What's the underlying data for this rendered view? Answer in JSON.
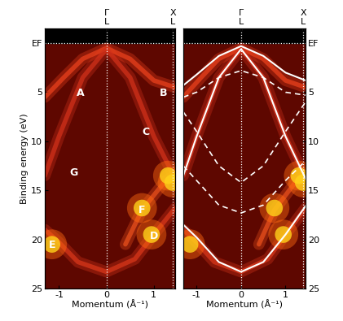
{
  "chart_data": [
    {
      "type": "line",
      "xlabel": "Momentum (Å⁻¹)",
      "ylabel": "Binding energy (eV)",
      "xlim": [
        -1.3,
        1.45
      ],
      "ylim": [
        25,
        -1.5
      ],
      "xticks": [
        {
          "value": -1,
          "label": "-1"
        },
        0,
        1
      ],
      "yticks": [
        {
          "value": 0,
          "label": "EF"
        },
        5,
        10,
        15,
        20,
        25
      ],
      "x2ticks": [
        {
          "value": 0,
          "label": "Γ\nL"
        },
        {
          "value": 1.4,
          "label": "X\nL"
        }
      ],
      "series": [
        {
          "type": "line",
          "line_style": "glow",
          "color": "#e8401c",
          "x": [
            -1.3,
            -0.9,
            -0.5,
            0,
            0.5,
            1,
            1.45
          ],
          "y": [
            5.5,
            3.5,
            1.6,
            0.5,
            1.6,
            3.8,
            4.5
          ]
        },
        {
          "type": "line",
          "line_style": "glow",
          "color": "#d0301a",
          "x": [
            -1.3,
            -1,
            -0.5,
            0,
            0.5,
            1,
            1.45
          ],
          "y": [
            13.5,
            9.5,
            3.5,
            0.6,
            3.5,
            9.5,
            13.8
          ]
        },
        {
          "type": "line",
          "line_style": "glow",
          "color": "#d8361a",
          "x": [
            -1.3,
            -1,
            -0.6,
            0,
            0.6,
            1,
            1.45
          ],
          "y": [
            19.0,
            20.3,
            22.3,
            23.3,
            22.0,
            19.5,
            16.8
          ]
        },
        {
          "type": "line",
          "line_style": "glow",
          "color": "#e8501c",
          "x": [
            0.4,
            0.75,
            1.0,
            1.25,
            1.45
          ],
          "y": [
            20.5,
            17.0,
            15.5,
            14.0,
            13.5
          ]
        },
        {
          "type": "scatter",
          "marker": "glow",
          "color": "#ffd21a",
          "x": [
            -1.15,
            1.3,
            0.95,
            0.75,
            1.4
          ],
          "y": [
            20.5,
            13.5,
            19.5,
            16.8,
            14.2
          ]
        }
      ],
      "annotations": [
        {
          "text": "A",
          "x": -0.55,
          "y": 5.1
        },
        {
          "text": "B",
          "x": 1.2,
          "y": 5.1
        },
        {
          "text": "C",
          "x": 0.83,
          "y": 9.1
        },
        {
          "text": "G",
          "x": -0.69,
          "y": 13.2
        },
        {
          "text": "F",
          "x": 0.74,
          "y": 17.0
        },
        {
          "text": "D",
          "x": 1.0,
          "y": 19.7
        },
        {
          "text": "E",
          "x": -1.15,
          "y": 20.6
        }
      ]
    },
    {
      "type": "line",
      "xlabel": "Momentum (Å⁻¹)",
      "xlim": [
        -1.3,
        1.45
      ],
      "ylim": [
        25,
        -1.5
      ],
      "xticks": [
        {
          "value": -1,
          "label": "-1"
        },
        0,
        1
      ],
      "yticks": [
        {
          "value": 0,
          "label": "EF"
        },
        5,
        10,
        15,
        20,
        25
      ],
      "x2ticks": [
        {
          "value": 0,
          "label": "Γ\nL"
        },
        {
          "value": 1.4,
          "label": "X\nL"
        }
      ],
      "series": [
        {
          "type": "line",
          "line_style": "glow",
          "color": "#e8401c",
          "x": [
            -1.3,
            -0.9,
            -0.5,
            0,
            0.5,
            1,
            1.45
          ],
          "y": [
            5.5,
            3.5,
            1.6,
            0.5,
            1.6,
            3.8,
            4.5
          ]
        },
        {
          "type": "line",
          "line_style": "glow",
          "color": "#d0301a",
          "x": [
            -1.3,
            -1,
            -0.5,
            0,
            0.5,
            1,
            1.45
          ],
          "y": [
            13.5,
            9.5,
            3.5,
            0.6,
            3.5,
            9.5,
            13.8
          ]
        },
        {
          "type": "line",
          "line_style": "glow",
          "color": "#d8361a",
          "x": [
            -1.3,
            -1,
            -0.6,
            0,
            0.6,
            1,
            1.45
          ],
          "y": [
            19.0,
            20.3,
            22.3,
            23.3,
            22.0,
            19.5,
            16.8
          ]
        },
        {
          "type": "line",
          "line_style": "glow",
          "color": "#e8501c",
          "x": [
            0.4,
            0.75,
            1.0,
            1.25,
            1.45
          ],
          "y": [
            20.5,
            17.0,
            15.5,
            14.0,
            13.5
          ]
        },
        {
          "type": "scatter",
          "marker": "glow",
          "color": "#ffd21a",
          "x": [
            -1.15,
            1.3,
            0.95,
            0.75,
            1.4
          ],
          "y": [
            20.5,
            13.5,
            19.5,
            16.8,
            14.2
          ]
        },
        {
          "type": "line",
          "line_style": "solid",
          "color": "#ffffff",
          "x": [
            -1.3,
            -1,
            -0.5,
            0,
            0.5,
            1,
            1.45
          ],
          "y": [
            4.3,
            3.2,
            1.3,
            0.3,
            1.3,
            3.0,
            3.8
          ]
        },
        {
          "type": "line",
          "line_style": "solid",
          "color": "#ffffff",
          "x": [
            -1.3,
            -1,
            -0.5,
            0,
            0.5,
            1,
            1.45
          ],
          "y": [
            13.5,
            9.5,
            3.5,
            0.6,
            3.5,
            9.5,
            13.8
          ]
        },
        {
          "type": "line",
          "line_style": "solid",
          "color": "#ffffff",
          "x": [
            -1.3,
            -1,
            -0.5,
            0,
            0.5,
            1,
            1.45
          ],
          "y": [
            18.5,
            19.8,
            22.3,
            23.3,
            22.3,
            19.5,
            16.6
          ]
        },
        {
          "type": "line",
          "line_style": "dashed",
          "color": "#ffffff",
          "x": [
            -1.3,
            -1,
            -0.5,
            0,
            0.5,
            1,
            1.45
          ],
          "y": [
            5.5,
            5.0,
            3.5,
            2.8,
            3.5,
            5.0,
            5.3
          ]
        },
        {
          "type": "line",
          "line_style": "dashed",
          "color": "#ffffff",
          "x": [
            -1.3,
            -1,
            -0.5,
            0,
            0.5,
            1,
            1.45
          ],
          "y": [
            7.0,
            9.0,
            12.5,
            14.2,
            12.5,
            9.0,
            6.0
          ]
        },
        {
          "type": "line",
          "line_style": "dashed",
          "color": "#ffffff",
          "x": [
            -1.3,
            -1,
            -0.5,
            0,
            0.5,
            1,
            1.45
          ],
          "y": [
            12.5,
            14.0,
            16.5,
            17.3,
            16.5,
            14.0,
            12.0
          ]
        }
      ]
    }
  ]
}
